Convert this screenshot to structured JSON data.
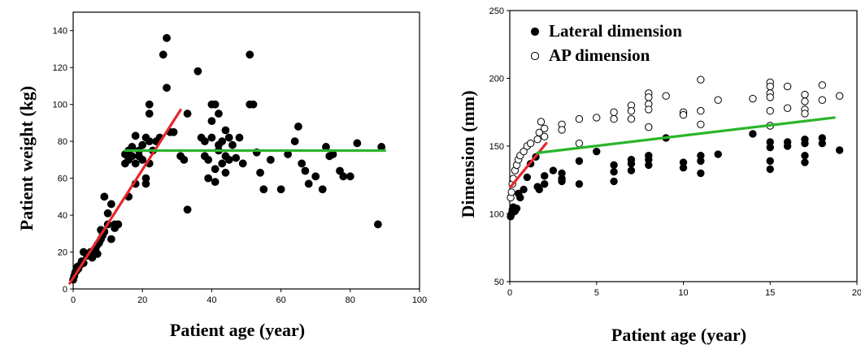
{
  "chart_data": [
    {
      "type": "scatter",
      "title": "",
      "xlabel": "Patient age (year)",
      "ylabel": "Patient weight (kg)",
      "xlim": [
        0,
        100
      ],
      "ylim": [
        0,
        150
      ],
      "xticks": [
        "0",
        "20",
        "40",
        "60",
        "80",
        "100"
      ],
      "yticks": [
        "0",
        "20",
        "40",
        "60",
        "80",
        "100",
        "120",
        "140"
      ],
      "grid": false,
      "legend": null,
      "colors": {
        "marker": "#000000",
        "fit_red": "#e8262b",
        "fit_green": "#2bb52b"
      },
      "series": [
        {
          "marker": "filled-circle",
          "points": [
            [
              0,
              5
            ],
            [
              0.3,
              7
            ],
            [
              0.6,
              9
            ],
            [
              1,
              10
            ],
            [
              1.2,
              12
            ],
            [
              1.5,
              11
            ],
            [
              2,
              13
            ],
            [
              2.5,
              15
            ],
            [
              3,
              14
            ],
            [
              3,
              20
            ],
            [
              4,
              18
            ],
            [
              4.5,
              19
            ],
            [
              5,
              20
            ],
            [
              5.5,
              17
            ],
            [
              6,
              21
            ],
            [
              6.5,
              22
            ],
            [
              7,
              24
            ],
            [
              7,
              19
            ],
            [
              7.5,
              25
            ],
            [
              8,
              27
            ],
            [
              8,
              32
            ],
            [
              8.5,
              29
            ],
            [
              9,
              31
            ],
            [
              9,
              50
            ],
            [
              10,
              35
            ],
            [
              10,
              41
            ],
            [
              11,
              46
            ],
            [
              11,
              27
            ],
            [
              12,
              35
            ],
            [
              12,
              33
            ],
            [
              13,
              35
            ],
            [
              15,
              73
            ],
            [
              15,
              68
            ],
            [
              16,
              75
            ],
            [
              16,
              70
            ],
            [
              16,
              50
            ],
            [
              17,
              72
            ],
            [
              17,
              77
            ],
            [
              18,
              83
            ],
            [
              18,
              68
            ],
            [
              18,
              57
            ],
            [
              19,
              72
            ],
            [
              19,
              75
            ],
            [
              20,
              78
            ],
            [
              20,
              70
            ],
            [
              21,
              82
            ],
            [
              21,
              60
            ],
            [
              21,
              57
            ],
            [
              22,
              95
            ],
            [
              22,
              100
            ],
            [
              22,
              80
            ],
            [
              22,
              68
            ],
            [
              23,
              75
            ],
            [
              24,
              80
            ],
            [
              25,
              82
            ],
            [
              26,
              127
            ],
            [
              27,
              136
            ],
            [
              27,
              109
            ],
            [
              28,
              85
            ],
            [
              29,
              85
            ],
            [
              31,
              72
            ],
            [
              32,
              70
            ],
            [
              33,
              95
            ],
            [
              33,
              43
            ],
            [
              36,
              118
            ],
            [
              37,
              82
            ],
            [
              38,
              80
            ],
            [
              38,
              72
            ],
            [
              39,
              70
            ],
            [
              39,
              60
            ],
            [
              40,
              100
            ],
            [
              40,
              91
            ],
            [
              40,
              82
            ],
            [
              41,
              65
            ],
            [
              41,
              100
            ],
            [
              41,
              58
            ],
            [
              42,
              78
            ],
            [
              42,
              95
            ],
            [
              42,
              75
            ],
            [
              43,
              68
            ],
            [
              43,
              80
            ],
            [
              44,
              72
            ],
            [
              44,
              63
            ],
            [
              44,
              86
            ],
            [
              45,
              70
            ],
            [
              45,
              82
            ],
            [
              46,
              78
            ],
            [
              47,
              71
            ],
            [
              48,
              82
            ],
            [
              49,
              68
            ],
            [
              51,
              127
            ],
            [
              51,
              100
            ],
            [
              52,
              100
            ],
            [
              53,
              74
            ],
            [
              54,
              63
            ],
            [
              55,
              54
            ],
            [
              57,
              70
            ],
            [
              60,
              54
            ],
            [
              62,
              73
            ],
            [
              64,
              80
            ],
            [
              65,
              88
            ],
            [
              66,
              68
            ],
            [
              67,
              64
            ],
            [
              68,
              57
            ],
            [
              70,
              61
            ],
            [
              72,
              54
            ],
            [
              73,
              77
            ],
            [
              74,
              72
            ],
            [
              75,
              73
            ],
            [
              77,
              64
            ],
            [
              78,
              61
            ],
            [
              80,
              61
            ],
            [
              82,
              79
            ],
            [
              88,
              35
            ],
            [
              89,
              77
            ]
          ]
        }
      ],
      "fit_lines": [
        {
          "color": "red",
          "from": [
            -1,
            3
          ],
          "to": [
            31,
            97
          ]
        },
        {
          "color": "green",
          "from": [
            15,
            75
          ],
          "to": [
            90,
            75
          ]
        }
      ]
    },
    {
      "type": "scatter",
      "title": "",
      "xlabel": "Patient age (year)",
      "ylabel": "Dimension (mm)",
      "xlim": [
        0,
        20
      ],
      "ylim": [
        50,
        250
      ],
      "xticks": [
        "0",
        "5",
        "10",
        "15",
        "20"
      ],
      "yticks": [
        "50",
        "100",
        "150",
        "200",
        "250"
      ],
      "grid": false,
      "legend": "top-left",
      "colors": {
        "marker": "#000000",
        "fit_red": "#e8262b",
        "fit_green": "#2bb52b"
      },
      "series": [
        {
          "name": "Lateral dimension",
          "marker": "filled-circle",
          "points": [
            [
              0.05,
              98
            ],
            [
              0.1,
              100
            ],
            [
              0.15,
              103
            ],
            [
              0.2,
              105
            ],
            [
              0.3,
              102
            ],
            [
              0.4,
              104
            ],
            [
              0.5,
              115
            ],
            [
              0.6,
              112
            ],
            [
              0.8,
              118
            ],
            [
              1,
              127
            ],
            [
              1.2,
              137
            ],
            [
              1.5,
              142
            ],
            [
              1.6,
              120
            ],
            [
              1.7,
              118
            ],
            [
              2,
              128
            ],
            [
              2,
              122
            ],
            [
              2.5,
              132
            ],
            [
              3,
              130
            ],
            [
              3,
              126
            ],
            [
              3,
              124
            ],
            [
              4,
              139
            ],
            [
              4,
              122
            ],
            [
              5,
              146
            ],
            [
              6,
              136
            ],
            [
              6,
              131
            ],
            [
              6,
              124
            ],
            [
              7,
              140
            ],
            [
              7,
              137
            ],
            [
              7,
              132
            ],
            [
              8,
              143
            ],
            [
              8,
              140
            ],
            [
              8,
              136
            ],
            [
              9,
              156
            ],
            [
              10,
              138
            ],
            [
              10,
              134
            ],
            [
              11,
              143
            ],
            [
              11,
              139
            ],
            [
              11,
              130
            ],
            [
              12,
              144
            ],
            [
              14,
              159
            ],
            [
              15,
              165
            ],
            [
              15,
              153
            ],
            [
              15,
              149
            ],
            [
              15,
              139
            ],
            [
              15,
              133
            ],
            [
              16,
              153
            ],
            [
              16,
              150
            ],
            [
              17,
              155
            ],
            [
              17,
              152
            ],
            [
              17,
              143
            ],
            [
              17,
              138
            ],
            [
              18,
              156
            ],
            [
              18,
              152
            ],
            [
              19,
              147
            ]
          ]
        },
        {
          "name": "AP dimension",
          "marker": "open-circle",
          "points": [
            [
              0.05,
              112
            ],
            [
              0.1,
              116
            ],
            [
              0.15,
              122
            ],
            [
              0.2,
              126
            ],
            [
              0.3,
              132
            ],
            [
              0.4,
              136
            ],
            [
              0.5,
              140
            ],
            [
              0.6,
              143
            ],
            [
              0.8,
              146
            ],
            [
              1,
              150
            ],
            [
              1.2,
              152
            ],
            [
              1.6,
              155
            ],
            [
              1.7,
              160
            ],
            [
              1.8,
              168
            ],
            [
              2,
              163
            ],
            [
              2,
              157
            ],
            [
              3,
              166
            ],
            [
              3,
              162
            ],
            [
              4,
              170
            ],
            [
              4,
              152
            ],
            [
              5,
              171
            ],
            [
              6,
              175
            ],
            [
              6,
              170
            ],
            [
              7,
              180
            ],
            [
              7,
              176
            ],
            [
              7,
              170
            ],
            [
              8,
              189
            ],
            [
              8,
              186
            ],
            [
              8,
              181
            ],
            [
              8,
              177
            ],
            [
              8,
              164
            ],
            [
              9,
              187
            ],
            [
              10,
              175
            ],
            [
              10,
              173
            ],
            [
              11,
              199
            ],
            [
              11,
              176
            ],
            [
              11,
              166
            ],
            [
              12,
              184
            ],
            [
              14,
              185
            ],
            [
              15,
              197
            ],
            [
              15,
              194
            ],
            [
              15,
              189
            ],
            [
              15,
              186
            ],
            [
              15,
              176
            ],
            [
              15,
              165
            ],
            [
              16,
              194
            ],
            [
              16,
              178
            ],
            [
              17,
              188
            ],
            [
              17,
              183
            ],
            [
              17,
              177
            ],
            [
              17,
              174
            ],
            [
              18,
              195
            ],
            [
              18,
              184
            ],
            [
              19,
              187
            ]
          ]
        }
      ],
      "fit_lines": [
        {
          "color": "red",
          "from": [
            0.05,
            120
          ],
          "to": [
            2.1,
            152
          ]
        },
        {
          "color": "green",
          "from": [
            1.6,
            145
          ],
          "to": [
            18.7,
            171
          ]
        }
      ]
    }
  ]
}
